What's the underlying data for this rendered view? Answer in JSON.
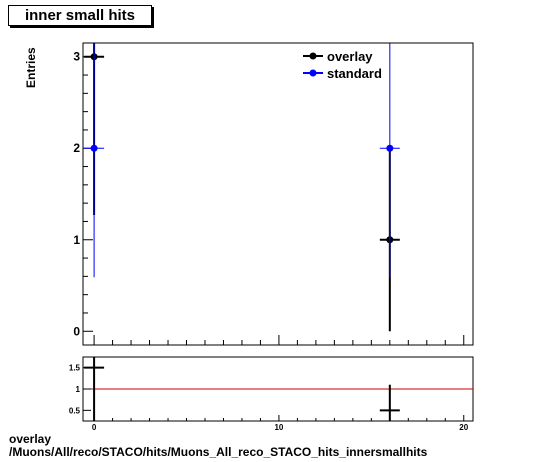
{
  "chart_data": {
    "type": "scatter",
    "title": "inner small hits",
    "ylabel": "Entries",
    "xlim": [
      -0.6,
      20.5
    ],
    "ylim": [
      -0.15,
      3.15
    ],
    "yticks": [
      "0",
      "1",
      "2",
      "3"
    ],
    "xticks": [
      "0",
      "10",
      "20"
    ],
    "series": [
      {
        "name": "overlay",
        "color": "#000000",
        "points": [
          {
            "x": 0,
            "y": 3,
            "err": 1.73
          },
          {
            "x": 16,
            "y": 1,
            "err": 1.0
          }
        ]
      },
      {
        "name": "standard",
        "color": "#0000ff",
        "points": [
          {
            "x": 0,
            "y": 2,
            "err": 1.41
          },
          {
            "x": 16,
            "y": 2,
            "err": 1.41
          }
        ]
      }
    ],
    "ratio": {
      "yticks": [
        "0.5",
        "1",
        "1.5"
      ],
      "ylim": [
        0.25,
        1.75
      ],
      "reference_color": "#cc0000",
      "reference": 1,
      "points": [
        {
          "x": 0,
          "y": 1.5
        },
        {
          "x": 16,
          "y": 0.5
        }
      ]
    }
  },
  "footer": {
    "line1": "overlay",
    "line2": "/Muons/All/reco/STACO/hits/Muons_All_reco_STACO_hits_innersmallhits"
  }
}
